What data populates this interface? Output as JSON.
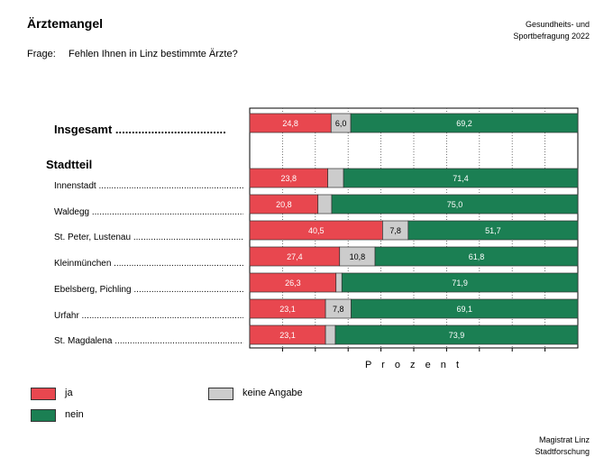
{
  "header": {
    "title": "Ärztemangel",
    "source_top_line1": "Gesundheits- und",
    "source_top_line2": "Sportbefragung 2022",
    "question_label": "Frage:",
    "question_text": "Fehlen Ihnen in Linz bestimmte Ärzte?"
  },
  "footer": {
    "line1": "Magistrat Linz",
    "line2": "Stadtforschung"
  },
  "colors": {
    "ja": "#e8474f",
    "keine_angabe": "#cccccc",
    "nein": "#1b7f53"
  },
  "chart_data": {
    "type": "bar",
    "orientation": "horizontal",
    "stacked": true,
    "xlabel": "P r o z e n t",
    "xlim": [
      0,
      100
    ],
    "grid": true,
    "section_label": "Stadtteil",
    "categories": [
      "Insgesamt ..................................",
      "Innenstadt ....................................................................",
      "Waldegg ........................................................................",
      "St. Peter, Lustenau .....................................................",
      "Kleinmünchen ..............................................................",
      "Ebelsberg, Pichling ......................................................",
      "Urfahr ...........................................................................",
      "St. Magdalena ..............................................................."
    ],
    "series": [
      {
        "name": "ja",
        "values": [
          24.8,
          23.8,
          20.8,
          40.5,
          27.4,
          26.3,
          23.1,
          23.1
        ],
        "labels": [
          "24,8",
          "23,8",
          "20,8",
          "40,5",
          "27,4",
          "26,3",
          "23,1",
          "23,1"
        ]
      },
      {
        "name": "keine Angabe",
        "values": [
          6.0,
          4.8,
          4.2,
          7.8,
          10.8,
          1.8,
          7.8,
          3.0
        ],
        "labels": [
          "6,0",
          "",
          "",
          "7,8",
          "10,8",
          "",
          "7,8",
          ""
        ]
      },
      {
        "name": "nein",
        "values": [
          69.2,
          71.4,
          75.0,
          51.7,
          61.8,
          71.9,
          69.1,
          73.9
        ],
        "labels": [
          "69,2",
          "71,4",
          "75,0",
          "51,7",
          "61,8",
          "71,9",
          "69,1",
          "73,9"
        ]
      }
    ],
    "legend": {
      "placement": "bottom-left"
    }
  }
}
